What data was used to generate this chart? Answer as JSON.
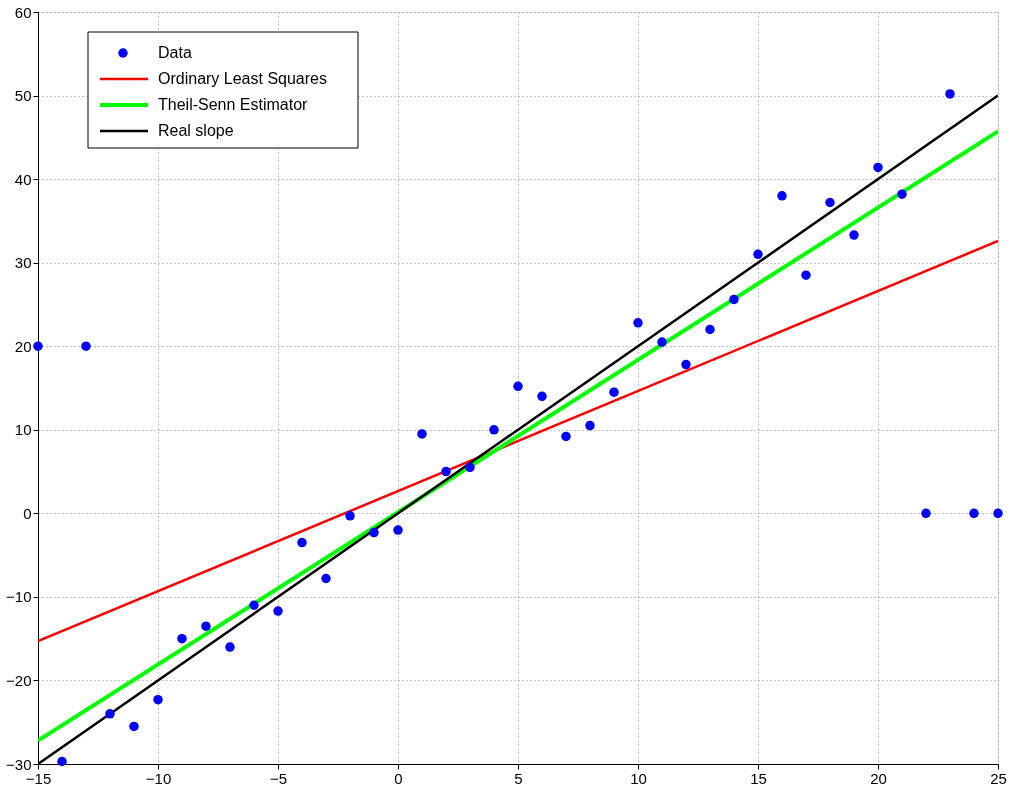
{
  "chart_data": {
    "type": "scatter",
    "xlim": [
      -15,
      25
    ],
    "ylim": [
      -30,
      60
    ],
    "xticks": [
      -15,
      -10,
      -5,
      0,
      5,
      10,
      15,
      20,
      25
    ],
    "yticks": [
      -30,
      -20,
      -10,
      0,
      10,
      20,
      30,
      40,
      50,
      60
    ],
    "grid": true,
    "legend": "top left",
    "series": [
      {
        "name": "Data",
        "marker": "circle",
        "color": "#0000ff",
        "x": [
          -15,
          -14,
          -13,
          -12,
          -11,
          -10,
          -9,
          -8,
          -7,
          -6,
          -5,
          -4,
          -3,
          -2,
          -1,
          0,
          1,
          2,
          3,
          4,
          5,
          6,
          7,
          8,
          9,
          10,
          11,
          12,
          13,
          14,
          15,
          16,
          17,
          18,
          19,
          20,
          21,
          22,
          23,
          24,
          25
        ],
        "values": [
          20,
          -29.7,
          20,
          -24,
          -25.5,
          -22.3,
          -15,
          -13.5,
          -16,
          -11,
          -11.7,
          -3.5,
          -7.8,
          -0.3,
          -2.3,
          -2,
          9.5,
          5,
          5.5,
          10,
          15.2,
          14,
          9.2,
          10.5,
          14.5,
          22.8,
          20.5,
          17.8,
          22,
          25.6,
          31,
          38,
          28.5,
          37.2,
          33.3,
          41.4,
          38.2,
          0,
          50.2,
          0,
          0
        ]
      },
      {
        "name": "Ordinary Least Squares",
        "type": "line",
        "color": "#ff0000",
        "x": [
          -15,
          25
        ],
        "values": [
          -15.3,
          32.6
        ]
      },
      {
        "name": "Theil-Senn Estimator",
        "type": "line",
        "color": "#00ff00",
        "x": [
          -15,
          25
        ],
        "values": [
          -27.2,
          45.7
        ]
      },
      {
        "name": "Real slope",
        "type": "line",
        "color": "#000000",
        "x": [
          -15,
          25
        ],
        "values": [
          -30,
          50
        ]
      }
    ]
  }
}
